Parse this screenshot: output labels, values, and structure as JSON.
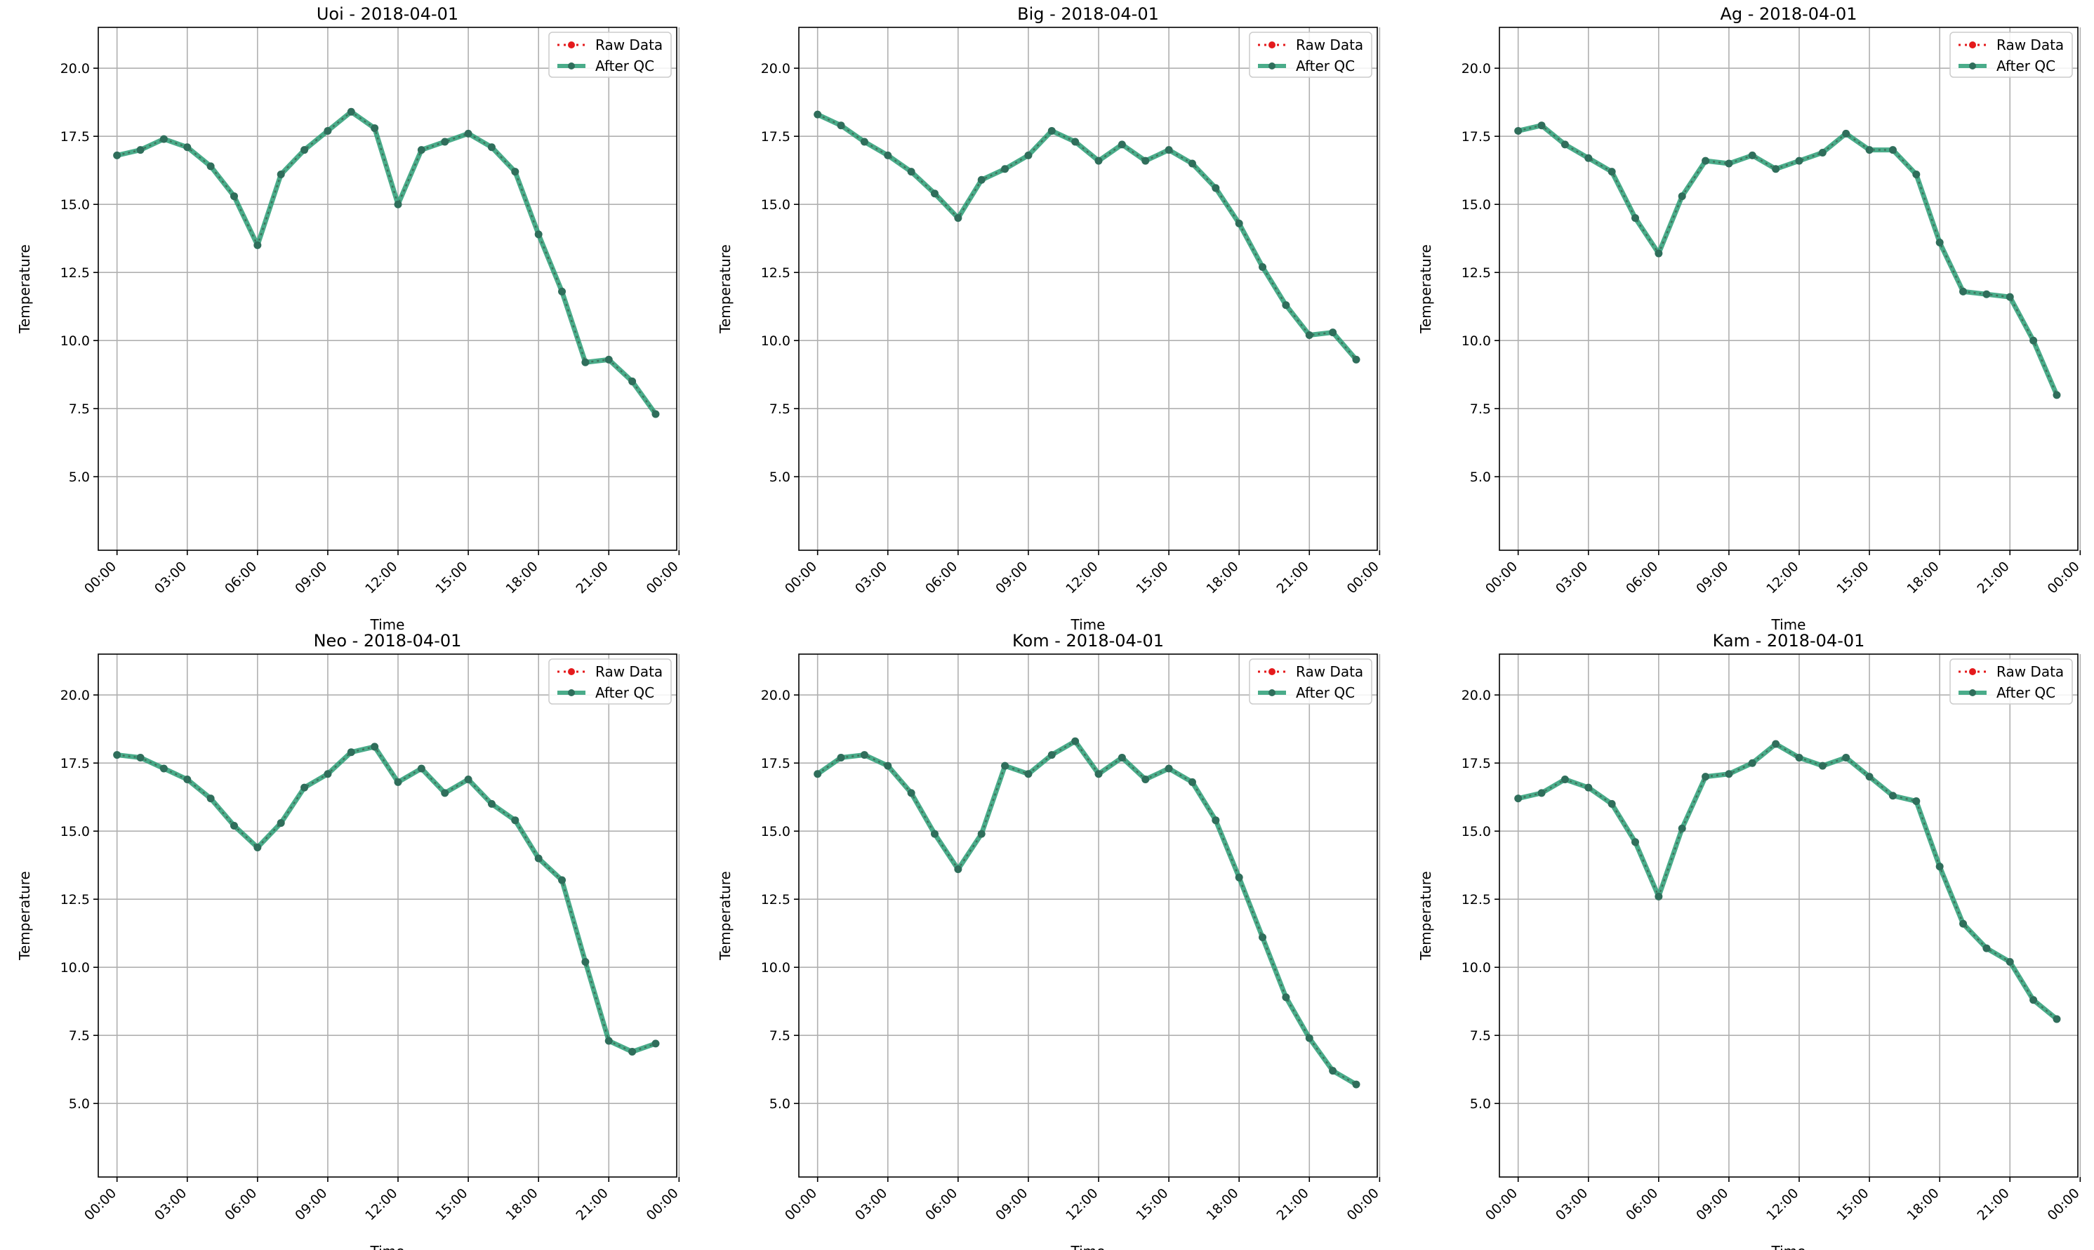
{
  "chart_data": [
    {
      "type": "line",
      "title": "Uoi - 2018-04-01",
      "xlabel": "Time",
      "ylabel": "Temperature",
      "ylim": [
        2.3,
        21.5
      ],
      "xlim": [
        -0.8,
        23.9
      ],
      "grid": true,
      "legend_position": "top-right",
      "x_ticks": [
        "00:00",
        "03:00",
        "06:00",
        "09:00",
        "12:00",
        "15:00",
        "18:00",
        "21:00",
        "00:00"
      ],
      "y_ticks": [
        "5.0",
        "7.5",
        "10.0",
        "12.5",
        "15.0",
        "17.5",
        "20.0"
      ],
      "x": [
        "00:00",
        "01:00",
        "02:00",
        "03:00",
        "04:00",
        "05:00",
        "06:00",
        "07:00",
        "08:00",
        "09:00",
        "10:00",
        "11:00",
        "12:00",
        "13:00",
        "14:00",
        "15:00",
        "16:00",
        "17:00",
        "18:00",
        "19:00",
        "20:00",
        "21:00",
        "22:00",
        "23:00"
      ],
      "series": [
        {
          "name": "Raw Data",
          "color": "#e41a1c",
          "values": [
            16.8,
            17.0,
            17.4,
            17.1,
            16.4,
            15.3,
            13.5,
            16.1,
            17.0,
            17.7,
            18.4,
            17.8,
            15.0,
            17.0,
            17.3,
            17.6,
            17.1,
            16.2,
            13.9,
            11.8,
            9.2,
            9.3,
            8.5,
            7.3
          ]
        },
        {
          "name": "After QC",
          "color": "#2a9d75",
          "values": [
            16.8,
            17.0,
            17.4,
            17.1,
            16.4,
            15.3,
            13.5,
            16.1,
            17.0,
            17.7,
            18.4,
            17.8,
            15.0,
            17.0,
            17.3,
            17.6,
            17.1,
            16.2,
            13.9,
            11.8,
            9.2,
            9.3,
            8.5,
            7.3
          ]
        }
      ]
    },
    {
      "type": "line",
      "title": "Big - 2018-04-01",
      "xlabel": "Time",
      "ylabel": "Temperature",
      "ylim": [
        2.3,
        21.5
      ],
      "xlim": [
        -0.8,
        23.9
      ],
      "grid": true,
      "legend_position": "top-right",
      "x_ticks": [
        "00:00",
        "03:00",
        "06:00",
        "09:00",
        "12:00",
        "15:00",
        "18:00",
        "21:00",
        "00:00"
      ],
      "y_ticks": [
        "5.0",
        "7.5",
        "10.0",
        "12.5",
        "15.0",
        "17.5",
        "20.0"
      ],
      "x": [
        "00:00",
        "01:00",
        "02:00",
        "03:00",
        "04:00",
        "05:00",
        "06:00",
        "07:00",
        "08:00",
        "09:00",
        "10:00",
        "11:00",
        "12:00",
        "13:00",
        "14:00",
        "15:00",
        "16:00",
        "17:00",
        "18:00",
        "19:00",
        "20:00",
        "21:00",
        "22:00",
        "23:00"
      ],
      "series": [
        {
          "name": "Raw Data",
          "color": "#e41a1c",
          "values": [
            18.3,
            17.9,
            17.3,
            16.8,
            16.2,
            15.4,
            14.5,
            15.9,
            16.3,
            16.8,
            17.7,
            17.3,
            16.6,
            17.2,
            16.6,
            17.0,
            16.5,
            15.6,
            14.3,
            12.7,
            11.3,
            10.2,
            10.3,
            9.3
          ]
        },
        {
          "name": "After QC",
          "color": "#2a9d75",
          "values": [
            18.3,
            17.9,
            17.3,
            16.8,
            16.2,
            15.4,
            14.5,
            15.9,
            16.3,
            16.8,
            17.7,
            17.3,
            16.6,
            17.2,
            16.6,
            17.0,
            16.5,
            15.6,
            14.3,
            12.7,
            11.3,
            10.2,
            10.3,
            9.3
          ]
        }
      ]
    },
    {
      "type": "line",
      "title": "Ag - 2018-04-01",
      "xlabel": "Time",
      "ylabel": "Temperature",
      "ylim": [
        2.3,
        21.5
      ],
      "xlim": [
        -0.8,
        23.9
      ],
      "grid": true,
      "legend_position": "top-right",
      "x_ticks": [
        "00:00",
        "03:00",
        "06:00",
        "09:00",
        "12:00",
        "15:00",
        "18:00",
        "21:00",
        "00:00"
      ],
      "y_ticks": [
        "5.0",
        "7.5",
        "10.0",
        "12.5",
        "15.0",
        "17.5",
        "20.0"
      ],
      "x": [
        "00:00",
        "01:00",
        "02:00",
        "03:00",
        "04:00",
        "05:00",
        "06:00",
        "07:00",
        "08:00",
        "09:00",
        "10:00",
        "11:00",
        "12:00",
        "13:00",
        "14:00",
        "15:00",
        "16:00",
        "17:00",
        "18:00",
        "19:00",
        "20:00",
        "21:00",
        "22:00",
        "23:00"
      ],
      "series": [
        {
          "name": "Raw Data",
          "color": "#e41a1c",
          "values": [
            17.7,
            17.9,
            17.2,
            16.7,
            16.2,
            14.5,
            13.2,
            15.3,
            16.6,
            16.5,
            16.8,
            16.3,
            16.6,
            16.9,
            17.6,
            17.0,
            17.0,
            16.1,
            13.6,
            11.8,
            11.7,
            11.6,
            10.0,
            8.0
          ]
        },
        {
          "name": "After QC",
          "color": "#2a9d75",
          "values": [
            17.7,
            17.9,
            17.2,
            16.7,
            16.2,
            14.5,
            13.2,
            15.3,
            16.6,
            16.5,
            16.8,
            16.3,
            16.6,
            16.9,
            17.6,
            17.0,
            17.0,
            16.1,
            13.6,
            11.8,
            11.7,
            11.6,
            10.0,
            8.0
          ]
        }
      ]
    },
    {
      "type": "line",
      "title": "Neo - 2018-04-01",
      "xlabel": "Time",
      "ylabel": "Temperature",
      "ylim": [
        2.3,
        21.5
      ],
      "xlim": [
        -0.8,
        23.9
      ],
      "grid": true,
      "legend_position": "top-right",
      "x_ticks": [
        "00:00",
        "03:00",
        "06:00",
        "09:00",
        "12:00",
        "15:00",
        "18:00",
        "21:00",
        "00:00"
      ],
      "y_ticks": [
        "5.0",
        "7.5",
        "10.0",
        "12.5",
        "15.0",
        "17.5",
        "20.0"
      ],
      "x": [
        "00:00",
        "01:00",
        "02:00",
        "03:00",
        "04:00",
        "05:00",
        "06:00",
        "07:00",
        "08:00",
        "09:00",
        "10:00",
        "11:00",
        "12:00",
        "13:00",
        "14:00",
        "15:00",
        "16:00",
        "17:00",
        "18:00",
        "19:00",
        "20:00",
        "21:00",
        "22:00",
        "23:00"
      ],
      "series": [
        {
          "name": "Raw Data",
          "color": "#e41a1c",
          "values": [
            17.8,
            17.7,
            17.3,
            16.9,
            16.2,
            15.2,
            14.4,
            15.3,
            16.6,
            17.1,
            17.9,
            18.1,
            16.8,
            17.3,
            16.4,
            16.9,
            16.0,
            15.4,
            14.0,
            13.2,
            10.2,
            7.3,
            6.9,
            7.2
          ]
        },
        {
          "name": "After QC",
          "color": "#2a9d75",
          "values": [
            17.8,
            17.7,
            17.3,
            16.9,
            16.2,
            15.2,
            14.4,
            15.3,
            16.6,
            17.1,
            17.9,
            18.1,
            16.8,
            17.3,
            16.4,
            16.9,
            16.0,
            15.4,
            14.0,
            13.2,
            10.2,
            7.3,
            6.9,
            7.2
          ]
        }
      ]
    },
    {
      "type": "line",
      "title": "Kom - 2018-04-01",
      "xlabel": "Time",
      "ylabel": "Temperature",
      "ylim": [
        2.3,
        21.5
      ],
      "xlim": [
        -0.8,
        23.9
      ],
      "grid": true,
      "legend_position": "top-right",
      "x_ticks": [
        "00:00",
        "03:00",
        "06:00",
        "09:00",
        "12:00",
        "15:00",
        "18:00",
        "21:00",
        "00:00"
      ],
      "y_ticks": [
        "5.0",
        "7.5",
        "10.0",
        "12.5",
        "15.0",
        "17.5",
        "20.0"
      ],
      "x": [
        "00:00",
        "01:00",
        "02:00",
        "03:00",
        "04:00",
        "05:00",
        "06:00",
        "07:00",
        "08:00",
        "09:00",
        "10:00",
        "11:00",
        "12:00",
        "13:00",
        "14:00",
        "15:00",
        "16:00",
        "17:00",
        "18:00",
        "19:00",
        "20:00",
        "21:00",
        "22:00",
        "23:00"
      ],
      "series": [
        {
          "name": "Raw Data",
          "color": "#e41a1c",
          "values": [
            17.1,
            17.7,
            17.8,
            17.4,
            16.4,
            14.9,
            13.6,
            14.9,
            17.4,
            17.1,
            17.8,
            18.3,
            17.1,
            17.7,
            16.9,
            17.3,
            16.8,
            15.4,
            13.3,
            11.1,
            8.9,
            7.4,
            6.2,
            5.7
          ]
        },
        {
          "name": "After QC",
          "color": "#2a9d75",
          "values": [
            17.1,
            17.7,
            17.8,
            17.4,
            16.4,
            14.9,
            13.6,
            14.9,
            17.4,
            17.1,
            17.8,
            18.3,
            17.1,
            17.7,
            16.9,
            17.3,
            16.8,
            15.4,
            13.3,
            11.1,
            8.9,
            7.4,
            6.2,
            5.7
          ]
        }
      ]
    },
    {
      "type": "line",
      "title": "Kam - 2018-04-01",
      "xlabel": "Time",
      "ylabel": "Temperature",
      "ylim": [
        2.3,
        21.5
      ],
      "xlim": [
        -0.8,
        23.9
      ],
      "grid": true,
      "legend_position": "top-right",
      "x_ticks": [
        "00:00",
        "03:00",
        "06:00",
        "09:00",
        "12:00",
        "15:00",
        "18:00",
        "21:00",
        "00:00"
      ],
      "y_ticks": [
        "5.0",
        "7.5",
        "10.0",
        "12.5",
        "15.0",
        "17.5",
        "20.0"
      ],
      "x": [
        "00:00",
        "01:00",
        "02:00",
        "03:00",
        "04:00",
        "05:00",
        "06:00",
        "07:00",
        "08:00",
        "09:00",
        "10:00",
        "11:00",
        "12:00",
        "13:00",
        "14:00",
        "15:00",
        "16:00",
        "17:00",
        "18:00",
        "19:00",
        "20:00",
        "21:00",
        "22:00",
        "23:00"
      ],
      "series": [
        {
          "name": "Raw Data",
          "color": "#e41a1c",
          "values": [
            16.2,
            16.4,
            16.9,
            16.6,
            16.0,
            14.6,
            12.6,
            15.1,
            17.0,
            17.1,
            17.5,
            18.2,
            17.7,
            17.4,
            17.7,
            17.0,
            16.3,
            16.1,
            13.7,
            11.6,
            10.7,
            10.2,
            8.8,
            8.1
          ]
        },
        {
          "name": "After QC",
          "color": "#2a9d75",
          "values": [
            16.2,
            16.4,
            16.9,
            16.6,
            16.0,
            14.6,
            12.6,
            15.1,
            17.0,
            17.1,
            17.5,
            18.2,
            17.7,
            17.4,
            17.7,
            17.0,
            16.3,
            16.1,
            13.7,
            11.6,
            10.7,
            10.2,
            8.8,
            8.1
          ]
        }
      ]
    }
  ]
}
